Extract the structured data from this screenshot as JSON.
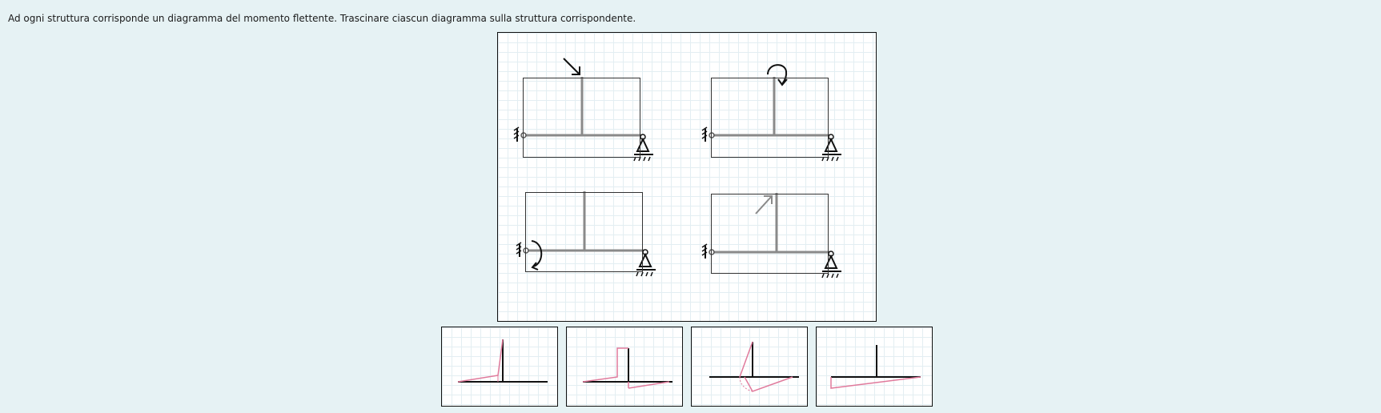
{
  "instructions": "Ad ogni struttura corrisponde un diagramma del momento flettente. Trascinare ciascun diagramma sulla struttura corrispondente.",
  "colors": {
    "background": "#e6f2f4",
    "beam": "#8a8a8a",
    "ink": "#111111",
    "moment": "#e07a9c"
  },
  "structures": [
    {
      "load_icon": "inclined-force-arrow-icon"
    },
    {
      "load_icon": "couple-moment-icon"
    },
    {
      "load_icon": "couple-moment-at-support-icon"
    },
    {
      "load_icon": "inclined-force-arrow-icon"
    }
  ],
  "diagrams": [
    {
      "icon": "moment-diagram-icon"
    },
    {
      "icon": "moment-diagram-icon"
    },
    {
      "icon": "moment-diagram-icon"
    },
    {
      "icon": "moment-diagram-icon"
    }
  ]
}
